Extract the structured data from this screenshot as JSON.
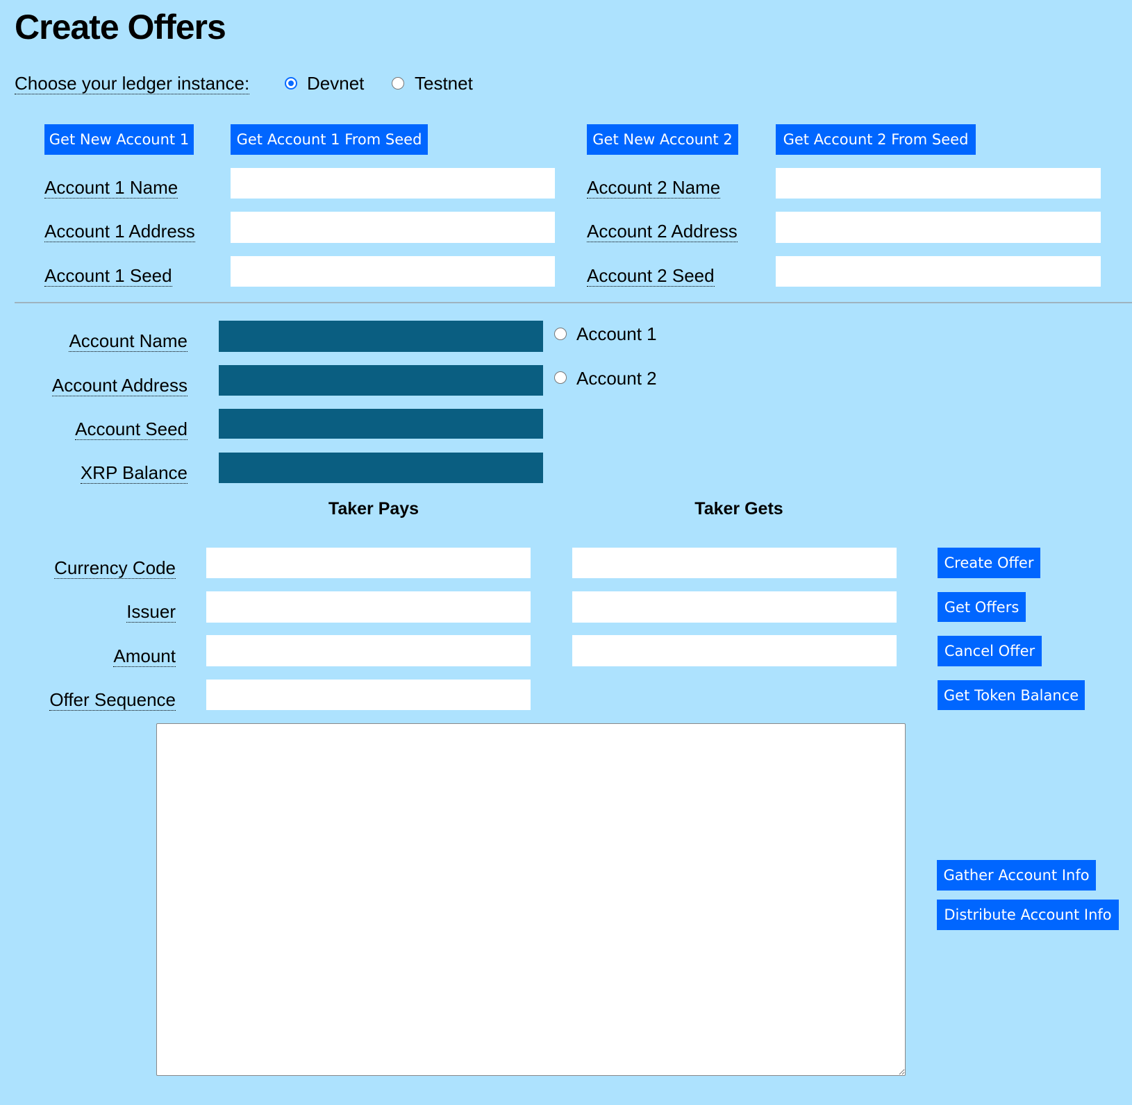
{
  "title": "Create Offers",
  "ledger": {
    "label": "Choose your ledger instance:",
    "options": [
      {
        "label": "Devnet",
        "selected": true
      },
      {
        "label": "Testnet",
        "selected": false
      }
    ]
  },
  "accounts": {
    "get_new_1": "Get New Account 1",
    "get_from_seed_1": "Get Account 1 From Seed",
    "get_new_2": "Get New Account 2",
    "get_from_seed_2": "Get Account 2 From Seed",
    "account1_name_label": "Account 1 Name",
    "account1_address_label": "Account 1 Address",
    "account1_seed_label": "Account 1 Seed",
    "account2_name_label": "Account 2 Name",
    "account2_address_label": "Account 2 Address",
    "account2_seed_label": "Account 2 Seed",
    "account1_name": "",
    "account1_address": "",
    "account1_seed": "",
    "account2_name": "",
    "account2_address": "",
    "account2_seed": ""
  },
  "current": {
    "name_label": "Account Name",
    "address_label": "Account Address",
    "seed_label": "Account Seed",
    "balance_label": "XRP Balance",
    "name": "",
    "address": "",
    "seed": "",
    "balance": "",
    "select_options": [
      {
        "label": "Account 1",
        "selected": false
      },
      {
        "label": "Account 2",
        "selected": false
      }
    ]
  },
  "offer": {
    "taker_pays_heading": "Taker Pays",
    "taker_gets_heading": "Taker Gets",
    "currency_label": "Currency Code",
    "issuer_label": "Issuer",
    "amount_label": "Amount",
    "sequence_label": "Offer Sequence",
    "pays_currency": "",
    "pays_issuer": "",
    "pays_amount": "",
    "offer_sequence": "",
    "gets_currency": "",
    "gets_issuer": "",
    "gets_amount": ""
  },
  "actions": {
    "create_offer": "Create Offer",
    "get_offers": "Get Offers",
    "cancel_offer": "Cancel Offer",
    "get_token_balance": "Get Token Balance",
    "gather_info": "Gather Account Info",
    "distribute_info": "Distribute Account Info"
  },
  "results": "",
  "colors": {
    "background": "#ade2fe",
    "button": "#0066ff",
    "readonly_field": "#0a5e81"
  }
}
